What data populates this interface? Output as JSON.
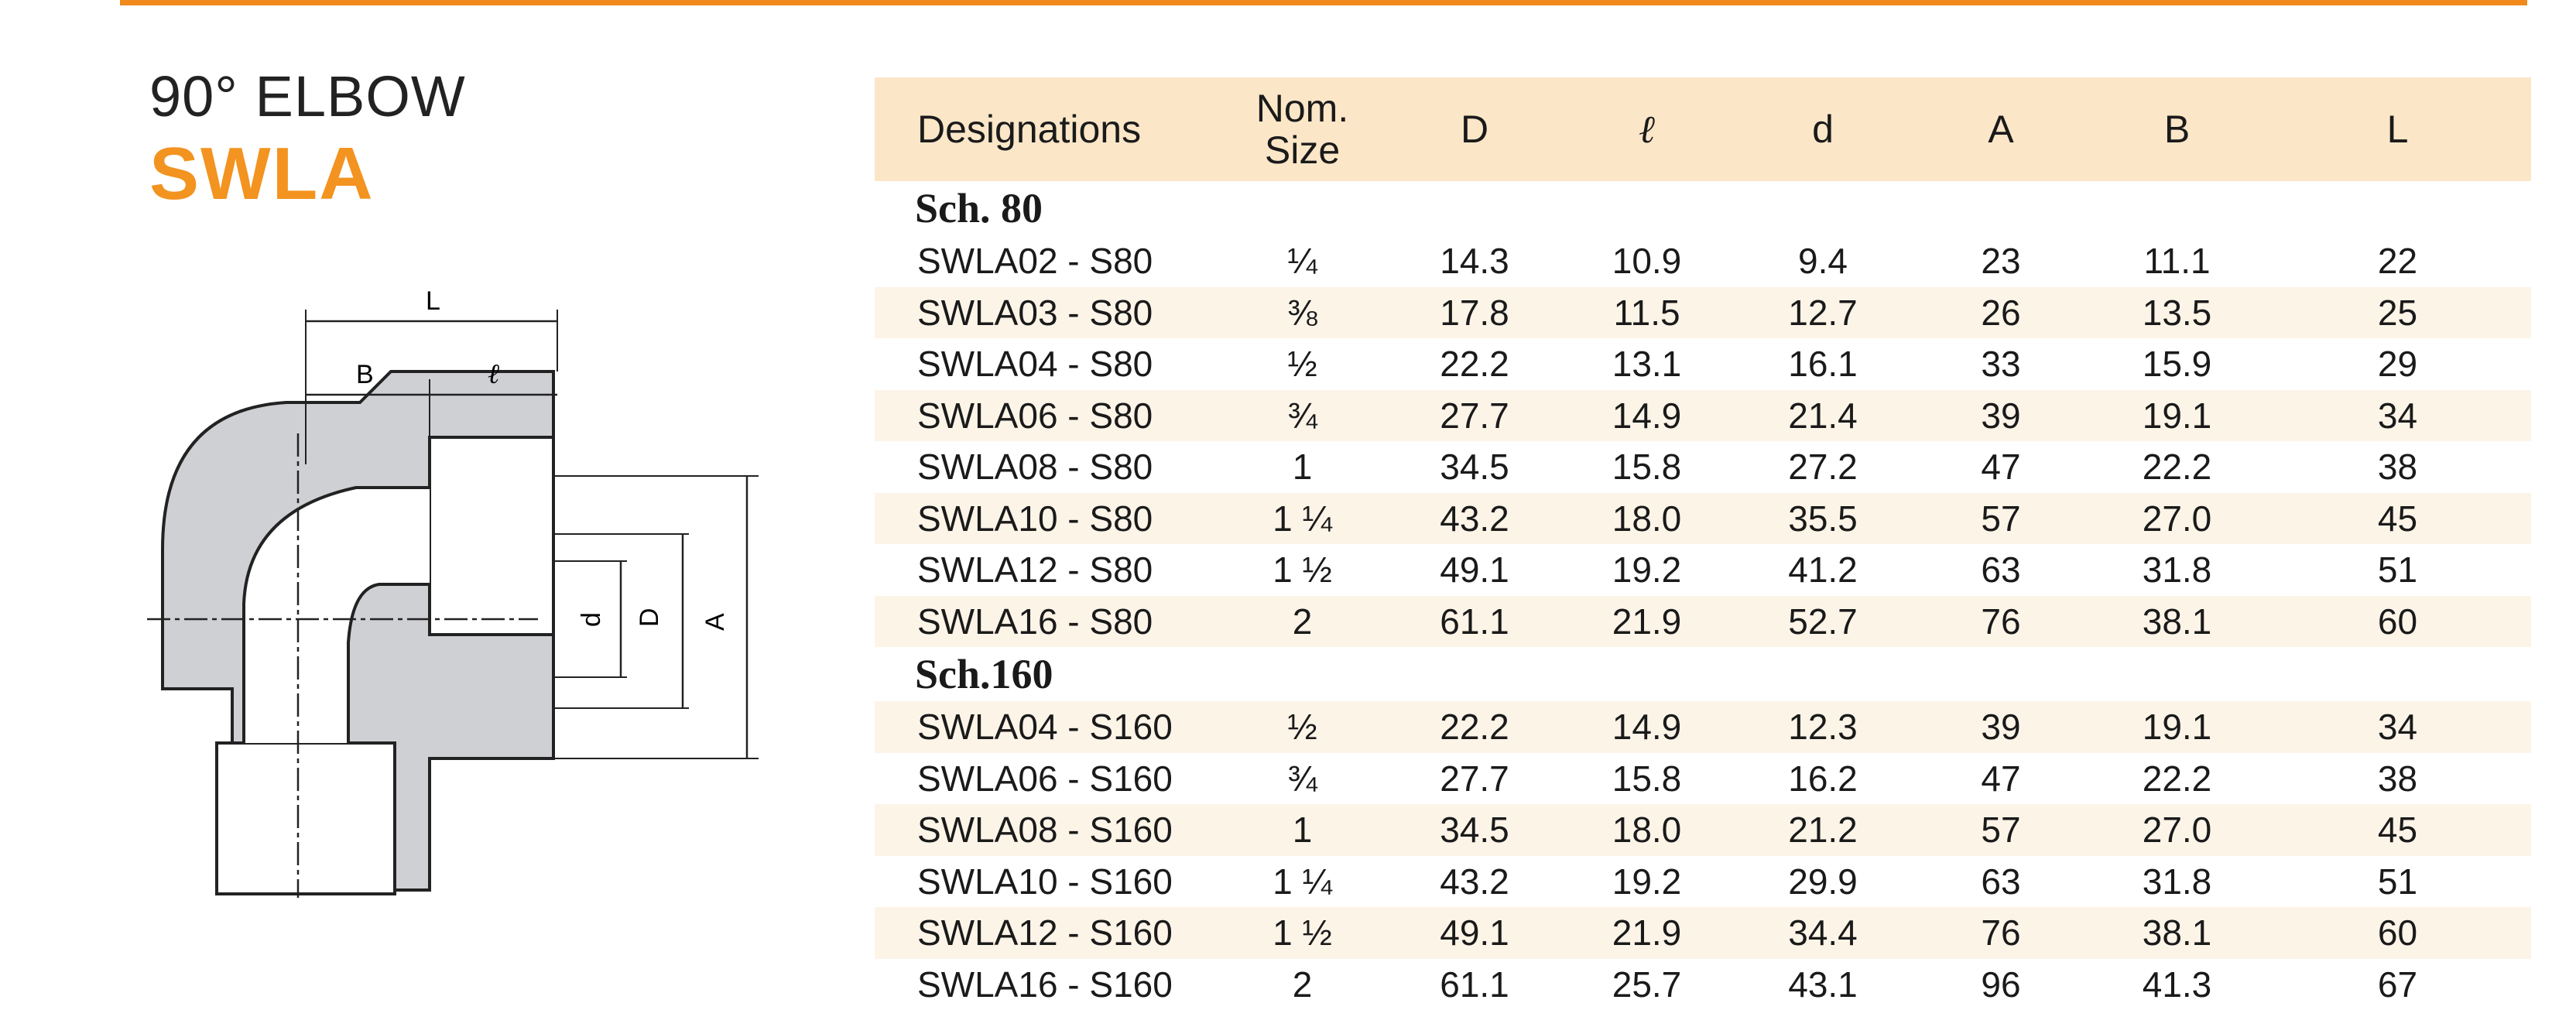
{
  "title": {
    "line1": "90° ELBOW",
    "line2": "SWLA"
  },
  "drawing_labels": {
    "L": "L",
    "B": "B",
    "l": "ℓ",
    "d": "d",
    "D": "D",
    "A": "A"
  },
  "columns": [
    "Designations",
    "Nom. Size",
    "D",
    "ℓ",
    "d",
    "A",
    "B",
    "L"
  ],
  "groups": [
    {
      "heading": "Sch.  80",
      "rows": [
        [
          "SWLA02 - S80",
          "¼",
          "14.3",
          "10.9",
          "9.4",
          "23",
          "11.1",
          "22"
        ],
        [
          "SWLA03 - S80",
          "⅜",
          "17.8",
          "11.5",
          "12.7",
          "26",
          "13.5",
          "25"
        ],
        [
          "SWLA04 - S80",
          "½",
          "22.2",
          "13.1",
          "16.1",
          "33",
          "15.9",
          "29"
        ],
        [
          "SWLA06 - S80",
          "¾",
          "27.7",
          "14.9",
          "21.4",
          "39",
          "19.1",
          "34"
        ],
        [
          "SWLA08 - S80",
          "1",
          "34.5",
          "15.8",
          "27.2",
          "47",
          "22.2",
          "38"
        ],
        [
          "SWLA10 - S80",
          "1 ¼",
          "43.2",
          "18.0",
          "35.5",
          "57",
          "27.0",
          "45"
        ],
        [
          "SWLA12 - S80",
          "1 ½",
          "49.1",
          "19.2",
          "41.2",
          "63",
          "31.8",
          "51"
        ],
        [
          "SWLA16 - S80",
          "2",
          "61.1",
          "21.9",
          "52.7",
          "76",
          "38.1",
          "60"
        ]
      ]
    },
    {
      "heading": "Sch.160",
      "rows": [
        [
          "SWLA04 - S160",
          "½",
          "22.2",
          "14.9",
          "12.3",
          "39",
          "19.1",
          "34"
        ],
        [
          "SWLA06 - S160",
          "¾",
          "27.7",
          "15.8",
          "16.2",
          "47",
          "22.2",
          "38"
        ],
        [
          "SWLA08 - S160",
          "1",
          "34.5",
          "18.0",
          "21.2",
          "57",
          "27.0",
          "45"
        ],
        [
          "SWLA10 - S160",
          "1 ¼",
          "43.2",
          "19.2",
          "29.9",
          "63",
          "31.8",
          "51"
        ],
        [
          "SWLA12 - S160",
          "1 ½",
          "49.1",
          "21.9",
          "34.4",
          "76",
          "38.1",
          "60"
        ],
        [
          "SWLA16 - S160",
          "2",
          "61.1",
          "25.7",
          "43.1",
          "96",
          "41.3",
          "67"
        ]
      ]
    }
  ]
}
